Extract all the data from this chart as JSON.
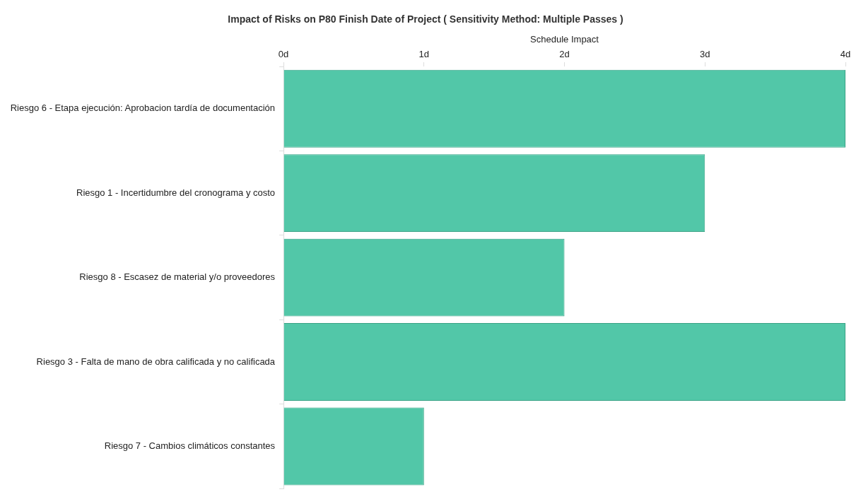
{
  "chart_data": {
    "type": "bar",
    "orientation": "horizontal",
    "title": "Impact of Risks on P80 Finish Date of Project ( Sensitivity Method: Multiple Passes )",
    "xlabel": "Schedule Impact",
    "categories": [
      "Riesgo 6 - Etapa ejecución: Aprobacion tardía de documentación",
      "Riesgo 1 - Incertidumbre del cronograma y costo",
      "Riesgo 8 - Escasez de material y/o proveedores",
      "Riesgo 3 - Falta de mano de obra calificada y no calificada",
      "Riesgo 7 - Cambios climáticos constantes"
    ],
    "values": [
      4,
      3,
      2,
      4,
      1
    ],
    "color": "#52c7a8",
    "xlim": [
      0,
      4
    ],
    "xticks": [
      {
        "value": 0,
        "label": "0d"
      },
      {
        "value": 1,
        "label": "1d"
      },
      {
        "value": 2,
        "label": "2d"
      },
      {
        "value": 3,
        "label": "3d"
      },
      {
        "value": 4,
        "label": "4d"
      }
    ],
    "grid": false,
    "legend": false
  }
}
